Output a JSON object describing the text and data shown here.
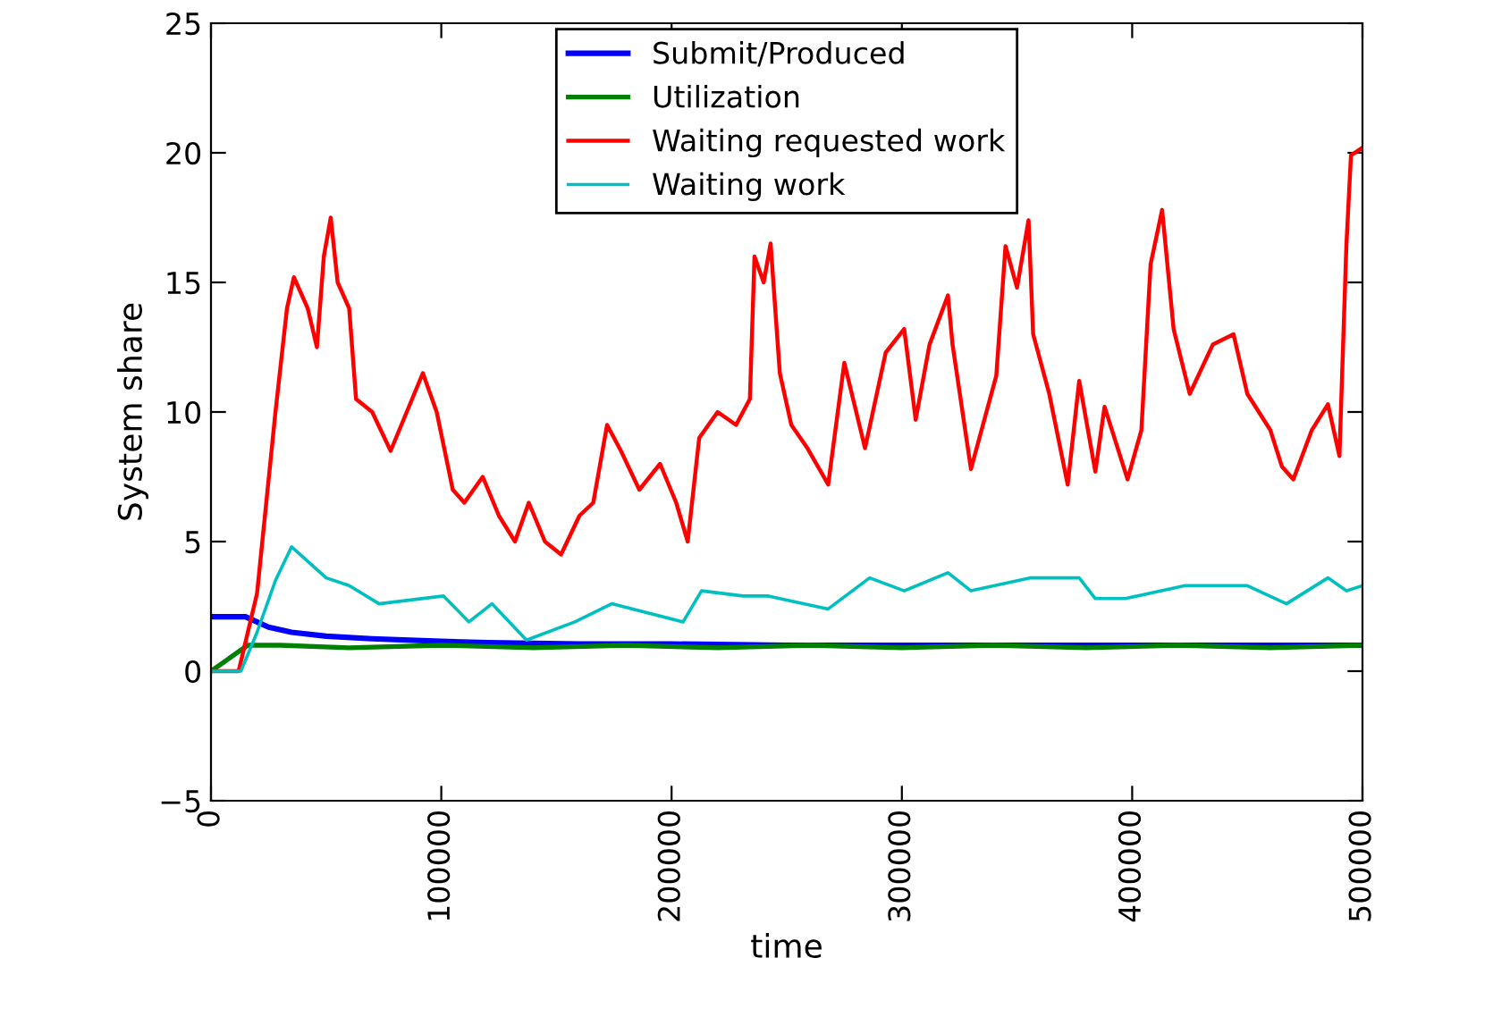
{
  "chart_data": {
    "type": "line",
    "xlabel": "time",
    "ylabel": "System share",
    "xlim": [
      0,
      500000
    ],
    "ylim": [
      -5,
      25
    ],
    "xticks": [
      0,
      100000,
      200000,
      300000,
      400000,
      500000
    ],
    "yticks": [
      {
        "value": -5,
        "label": "−5"
      },
      0,
      5,
      10,
      15,
      20,
      25
    ],
    "grid": false,
    "legend": "top",
    "marker": "none",
    "line_style": "solid",
    "series": [
      {
        "name": "Submit/Produced",
        "color": "#0000ff",
        "x": [
          0,
          15000,
          25000,
          35000,
          50000,
          70000,
          100000,
          120000,
          160000,
          200000,
          250000,
          300000,
          400000,
          500000
        ],
        "values": [
          2.1,
          2.1,
          1.7,
          1.5,
          1.35,
          1.25,
          1.15,
          1.1,
          1.05,
          1.05,
          1.0,
          1.0,
          1.0,
          1.0
        ]
      },
      {
        "name": "Utilization",
        "color": "#008000",
        "x": [
          0,
          16000,
          30000,
          60000,
          100000,
          140000,
          180000,
          220000,
          260000,
          300000,
          340000,
          380000,
          420000,
          460000,
          500000
        ],
        "values": [
          0,
          1.0,
          1.0,
          0.9,
          1.0,
          0.9,
          1.0,
          0.9,
          1.0,
          0.9,
          1.0,
          0.9,
          1.0,
          0.9,
          1.0
        ]
      },
      {
        "name": "Waiting requested work",
        "color": "#ff0000",
        "x": [
          0,
          12000,
          20000,
          28000,
          33000,
          36000,
          42000,
          46000,
          49000,
          52000,
          55000,
          60000,
          63000,
          70000,
          78000,
          85000,
          92000,
          98000,
          105000,
          110000,
          118000,
          125000,
          132000,
          138000,
          145000,
          152000,
          160000,
          166000,
          172000,
          178000,
          186000,
          195000,
          202000,
          207000,
          212000,
          220000,
          228000,
          234000,
          236000,
          240000,
          243000,
          247000,
          252000,
          259000,
          268000,
          275000,
          284000,
          293000,
          301000,
          306000,
          312000,
          320000,
          322000,
          330000,
          341000,
          345000,
          350000,
          355000,
          357000,
          364000,
          372000,
          377000,
          384000,
          388000,
          398000,
          404000,
          408000,
          413000,
          418000,
          425000,
          435000,
          444000,
          450000,
          460000,
          465000,
          470000,
          478000,
          485000,
          490000,
          493000,
          495000,
          500000
        ],
        "values": [
          0,
          0,
          3,
          10,
          14,
          15.2,
          14,
          12.5,
          16,
          17.5,
          15,
          14,
          10.5,
          10,
          8.5,
          10,
          11.5,
          10,
          7,
          6.5,
          7.5,
          6,
          5,
          6.5,
          5,
          4.5,
          6,
          6.5,
          9.5,
          8.5,
          7,
          8,
          6.5,
          5,
          9,
          10,
          9.5,
          10.5,
          16,
          15,
          16.5,
          11.5,
          9.5,
          8.6,
          7.2,
          11.9,
          8.6,
          12.3,
          13.2,
          9.7,
          12.6,
          14.5,
          12.6,
          7.8,
          11.4,
          16.4,
          14.8,
          17.4,
          13.0,
          10.7,
          7.2,
          11.2,
          7.7,
          10.2,
          7.4,
          9.3,
          15.7,
          17.8,
          13.2,
          10.7,
          12.6,
          13.0,
          10.7,
          9.3,
          7.9,
          7.4,
          9.3,
          10.3,
          8.3,
          16.4,
          19.9,
          20.2
        ]
      },
      {
        "name": "Waiting work",
        "color": "#00bfbf",
        "x": [
          0,
          13000,
          20000,
          28000,
          35000,
          50000,
          60000,
          73000,
          101000,
          112000,
          122000,
          137000,
          158000,
          174000,
          205000,
          213000,
          231000,
          242000,
          268000,
          286000,
          301000,
          320000,
          330000,
          356000,
          377000,
          384000,
          397000,
          423000,
          450000,
          467000,
          485000,
          493000,
          500000
        ],
        "values": [
          0,
          0,
          1.5,
          3.5,
          4.8,
          3.6,
          3.3,
          2.6,
          2.9,
          1.9,
          2.6,
          1.2,
          1.9,
          2.6,
          1.9,
          3.1,
          2.9,
          2.9,
          2.4,
          3.6,
          3.1,
          3.8,
          3.1,
          3.6,
          3.6,
          2.8,
          2.8,
          3.3,
          3.3,
          2.6,
          3.6,
          3.1,
          3.3
        ]
      }
    ]
  }
}
